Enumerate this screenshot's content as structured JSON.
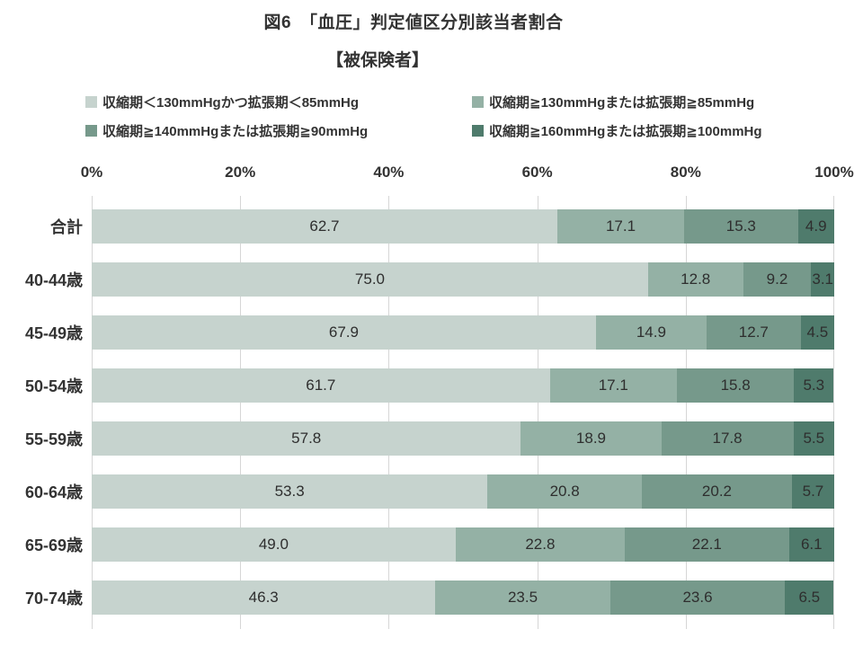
{
  "chart": {
    "title": "図6　「血圧」判定値区分別該当者割合",
    "subtitle": "【被保険者】"
  },
  "chart_data": {
    "type": "bar",
    "orientation": "horizontal",
    "stacked": true,
    "title": "図6　「血圧」判定値区分別該当者割合",
    "subtitle": "【被保険者】",
    "categories": [
      "合計",
      "40-44歳",
      "45-49歳",
      "50-54歳",
      "55-59歳",
      "60-64歳",
      "65-69歳",
      "70-74歳"
    ],
    "series": [
      {
        "name": "収縮期＜130mmHgかつ拡張期＜85mmHg",
        "color": "#c6d3ce",
        "values": [
          62.7,
          75.0,
          67.9,
          61.7,
          57.8,
          53.3,
          49.0,
          46.3
        ]
      },
      {
        "name": "収縮期≧130mmHgまたは拡張期≧85mmHg",
        "color": "#94b1a5",
        "values": [
          17.1,
          12.8,
          14.9,
          17.1,
          18.9,
          20.8,
          22.8,
          23.5
        ]
      },
      {
        "name": "収縮期≧140mmHgまたは拡張期≧90mmHg",
        "color": "#76998b",
        "values": [
          15.3,
          9.2,
          12.7,
          15.8,
          17.8,
          20.2,
          22.1,
          23.6
        ]
      },
      {
        "name": "収縮期≧160mmHgまたは拡張期≧100mmHg",
        "color": "#4f7b6c",
        "values": [
          4.9,
          3.1,
          4.5,
          5.3,
          5.5,
          5.7,
          6.1,
          6.5
        ]
      }
    ],
    "x_ticks": [
      "0%",
      "20%",
      "40%",
      "60%",
      "80%",
      "100%"
    ],
    "xlim": [
      0,
      100
    ],
    "grid": true,
    "gridline_color": "#d6d6d6",
    "legend_position": "top",
    "value_labels": "inside-center",
    "value_label_format": "one-decimal"
  }
}
